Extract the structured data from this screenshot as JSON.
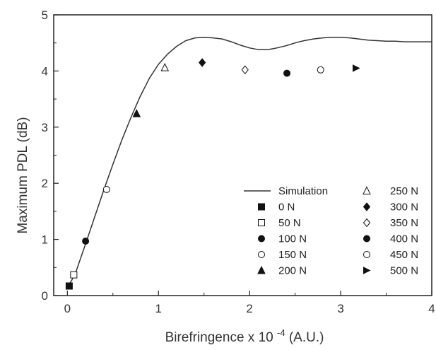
{
  "chart_data": {
    "type": "scatter",
    "xlabel": "Birefringence x 10",
    "xlabel_exponent": "-4",
    "xlabel_unit": "(A.U.)",
    "ylabel": "Maximum PDL (dB)",
    "xlim": [
      -0.15,
      4.0
    ],
    "ylim": [
      0,
      5
    ],
    "xticks": [
      0,
      1,
      2,
      3,
      4
    ],
    "yticks": [
      0,
      1,
      2,
      3,
      4,
      5
    ],
    "grid": false,
    "legend_position": "bottom-right",
    "series": [
      {
        "name": "Simulation",
        "kind": "line",
        "x": [
          0,
          0.05,
          0.1,
          0.2,
          0.3,
          0.4,
          0.5,
          0.6,
          0.7,
          0.8,
          0.9,
          1.0,
          1.1,
          1.2,
          1.3,
          1.4,
          1.5,
          1.6,
          1.7,
          1.8,
          1.9,
          2.0,
          2.1,
          2.2,
          2.3,
          2.4,
          2.5,
          2.6,
          2.7,
          2.8,
          2.9,
          3.0,
          3.1,
          3.2,
          3.3,
          3.4,
          3.5,
          3.6,
          3.7,
          3.8,
          3.9,
          4.0
        ],
        "y": [
          0.15,
          0.28,
          0.45,
          0.92,
          1.4,
          1.88,
          2.34,
          2.78,
          3.18,
          3.55,
          3.87,
          4.12,
          4.3,
          4.44,
          4.54,
          4.59,
          4.6,
          4.59,
          4.57,
          4.52,
          4.46,
          4.41,
          4.38,
          4.38,
          4.41,
          4.45,
          4.5,
          4.54,
          4.57,
          4.59,
          4.6,
          4.6,
          4.59,
          4.57,
          4.55,
          4.54,
          4.53,
          4.53,
          4.52,
          4.52,
          4.52,
          4.52
        ]
      },
      {
        "name": "0 N",
        "marker": "square-filled",
        "x": [
          0.02
        ],
        "y": [
          0.17
        ]
      },
      {
        "name": "50 N",
        "marker": "square-open",
        "x": [
          0.07
        ],
        "y": [
          0.37
        ]
      },
      {
        "name": "100 N",
        "marker": "circle-filled",
        "x": [
          0.2
        ],
        "y": [
          0.97
        ]
      },
      {
        "name": "150 N",
        "marker": "circle-open",
        "x": [
          0.43
        ],
        "y": [
          1.89
        ]
      },
      {
        "name": "200 N",
        "marker": "triangle-filled",
        "x": [
          0.76
        ],
        "y": [
          3.24
        ]
      },
      {
        "name": "250 N",
        "marker": "triangle-open",
        "x": [
          1.07
        ],
        "y": [
          4.06
        ]
      },
      {
        "name": "300 N",
        "marker": "diamond-filled",
        "x": [
          1.48
        ],
        "y": [
          4.15
        ]
      },
      {
        "name": "350 N",
        "marker": "diamond-open",
        "x": [
          1.95
        ],
        "y": [
          4.02
        ]
      },
      {
        "name": "400 N",
        "marker": "circle-filled",
        "x": [
          2.41
        ],
        "y": [
          3.96
        ]
      },
      {
        "name": "450 N",
        "marker": "circle-open",
        "x": [
          2.78
        ],
        "y": [
          4.02
        ]
      },
      {
        "name": "500 N",
        "marker": "triangle-right-filled",
        "x": [
          3.17
        ],
        "y": [
          4.05
        ]
      }
    ]
  }
}
